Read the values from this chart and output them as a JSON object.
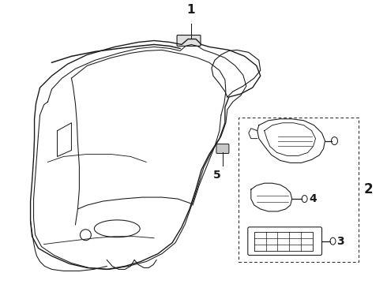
{
  "background_color": "#ffffff",
  "line_color": "#1a1a1a",
  "label_fontsize": 10,
  "lw": 0.9
}
